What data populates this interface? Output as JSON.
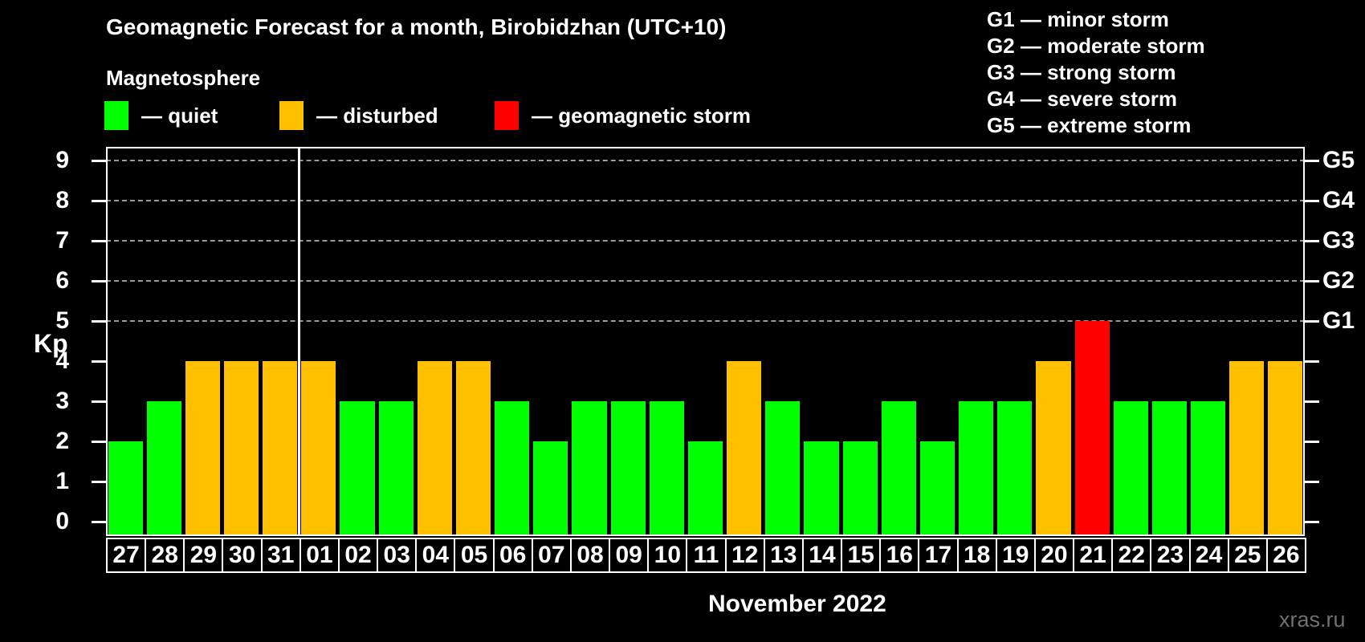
{
  "header": {
    "title": "Geomagnetic Forecast for a month, Birobidzhan (UTC+10)",
    "subtitle": "Magnetosphere"
  },
  "legend": {
    "items": [
      {
        "key": "quiet",
        "label": "— quiet",
        "color": "#00ff00"
      },
      {
        "key": "disturbed",
        "label": "— disturbed",
        "color": "#ffc000"
      },
      {
        "key": "storm",
        "label": "— geomagnetic storm",
        "color": "#ff0000"
      }
    ]
  },
  "g_scale_legend": {
    "items": [
      "G1 — minor storm",
      "G2 — moderate storm",
      "G3 — strong storm",
      "G4 — severe storm",
      "G5 — extreme storm"
    ]
  },
  "chart_data": {
    "type": "bar",
    "title": "Geomagnetic Forecast for a month, Birobidzhan (UTC+10)",
    "ylabel": "Kp",
    "xlabel": "November 2022",
    "ylim": [
      0,
      9
    ],
    "yticks": [
      0,
      1,
      2,
      3,
      4,
      5,
      6,
      7,
      8,
      9
    ],
    "gridlines_at": [
      5,
      6,
      7,
      8,
      9
    ],
    "grid": "dashed",
    "right_axis": [
      {
        "kp": 5,
        "label": "G1"
      },
      {
        "kp": 6,
        "label": "G2"
      },
      {
        "kp": 7,
        "label": "G3"
      },
      {
        "kp": 8,
        "label": "G4"
      },
      {
        "kp": 9,
        "label": "G5"
      }
    ],
    "month_separator_after_index": 4,
    "colors": {
      "quiet": "#00ff00",
      "disturbed": "#ffc000",
      "storm": "#ff0000"
    },
    "days": [
      {
        "date": "27",
        "kp": 2,
        "status": "quiet"
      },
      {
        "date": "28",
        "kp": 3,
        "status": "quiet"
      },
      {
        "date": "29",
        "kp": 4,
        "status": "disturbed"
      },
      {
        "date": "30",
        "kp": 4,
        "status": "disturbed"
      },
      {
        "date": "31",
        "kp": 4,
        "status": "disturbed"
      },
      {
        "date": "01",
        "kp": 4,
        "status": "disturbed"
      },
      {
        "date": "02",
        "kp": 3,
        "status": "quiet"
      },
      {
        "date": "03",
        "kp": 3,
        "status": "quiet"
      },
      {
        "date": "04",
        "kp": 4,
        "status": "disturbed"
      },
      {
        "date": "05",
        "kp": 4,
        "status": "disturbed"
      },
      {
        "date": "06",
        "kp": 3,
        "status": "quiet"
      },
      {
        "date": "07",
        "kp": 2,
        "status": "quiet"
      },
      {
        "date": "08",
        "kp": 3,
        "status": "quiet"
      },
      {
        "date": "09",
        "kp": 3,
        "status": "quiet"
      },
      {
        "date": "10",
        "kp": 3,
        "status": "quiet"
      },
      {
        "date": "11",
        "kp": 2,
        "status": "quiet"
      },
      {
        "date": "12",
        "kp": 4,
        "status": "disturbed"
      },
      {
        "date": "13",
        "kp": 3,
        "status": "quiet"
      },
      {
        "date": "14",
        "kp": 2,
        "status": "quiet"
      },
      {
        "date": "15",
        "kp": 2,
        "status": "quiet"
      },
      {
        "date": "16",
        "kp": 3,
        "status": "quiet"
      },
      {
        "date": "17",
        "kp": 2,
        "status": "quiet"
      },
      {
        "date": "18",
        "kp": 3,
        "status": "quiet"
      },
      {
        "date": "19",
        "kp": 3,
        "status": "quiet"
      },
      {
        "date": "20",
        "kp": 4,
        "status": "disturbed"
      },
      {
        "date": "21",
        "kp": 5,
        "status": "storm"
      },
      {
        "date": "22",
        "kp": 3,
        "status": "quiet"
      },
      {
        "date": "23",
        "kp": 3,
        "status": "quiet"
      },
      {
        "date": "24",
        "kp": 3,
        "status": "quiet"
      },
      {
        "date": "25",
        "kp": 4,
        "status": "disturbed"
      },
      {
        "date": "26",
        "kp": 4,
        "status": "disturbed"
      }
    ]
  },
  "footer": {
    "watermark": "xras.ru"
  }
}
